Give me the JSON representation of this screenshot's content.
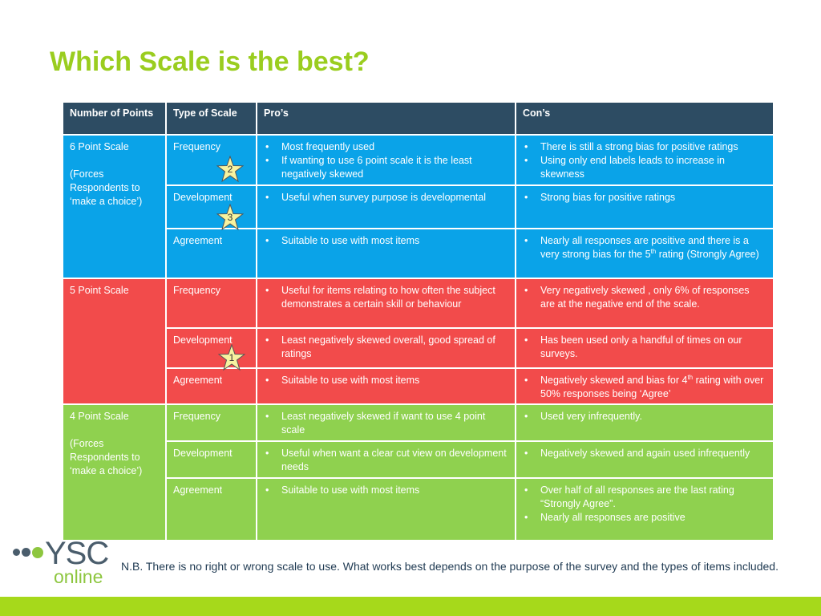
{
  "title": "Which Scale is the best?",
  "headers": [
    "Number of Points",
    "Type of Scale",
    "Pro’s",
    "Con’s"
  ],
  "groups": [
    {
      "scale": "6 Point Scale",
      "note": "(Forces Respondents to ‘make a choice’)",
      "rows": [
        {
          "type": "Frequency",
          "pros": [
            "Most frequently used",
            "If wanting to use 6 point scale it is the least negatively skewed"
          ],
          "cons": [
            "There is still a strong bias for positive ratings",
            "Using only end labels leads to increase in skewness"
          ]
        },
        {
          "type": "Development",
          "pros": [
            "Useful when survey purpose is developmental"
          ],
          "cons": [
            "Strong bias for positive ratings"
          ]
        },
        {
          "type": "Agreement",
          "pros": [
            "Suitable to use with most items"
          ],
          "cons_a": "Nearly all responses are positive  and there is a very strong bias for the 5",
          "cons_sup": "th",
          "cons_b": " rating (Strongly Agree)"
        }
      ]
    },
    {
      "scale": "5 Point Scale",
      "note": "",
      "rows": [
        {
          "type": "Frequency",
          "pros": [
            "Useful for items relating to how often the subject demonstrates a certain skill or behaviour"
          ],
          "cons": [
            "Very negatively skewed , only 6% of responses are at the negative end of the scale."
          ]
        },
        {
          "type": "Development",
          "pros": [
            "Least negatively skewed overall, good spread of ratings"
          ],
          "cons": [
            "Has been used only a handful of times on our surveys."
          ]
        },
        {
          "type": "Agreement",
          "pros": [
            "Suitable to use with most items"
          ],
          "cons_a": "Negatively skewed and bias for 4",
          "cons_sup": "th",
          "cons_b": " rating with over 50% responses being ‘Agree’"
        }
      ]
    },
    {
      "scale": "4 Point Scale",
      "note": "(Forces Respondents to ‘make a choice’)",
      "rows": [
        {
          "type": "Frequency",
          "pros": [
            "Least negatively skewed if want to use 4 point scale"
          ],
          "cons": [
            "Used very infrequently."
          ]
        },
        {
          "type": "Development",
          "pros": [
            "Useful when want a clear cut view on development needs"
          ],
          "cons": [
            "Negatively skewed and again used infrequently"
          ]
        },
        {
          "type": "Agreement",
          "pros": [
            "Suitable to use with most items"
          ],
          "cons": [
            "Over half of all responses are the last rating “Strongly Agree”.",
            "Nearly all responses are positive"
          ]
        }
      ]
    }
  ],
  "stars": [
    "2",
    "3",
    "1"
  ],
  "logo": {
    "main": "YSC",
    "sub": "online"
  },
  "footnote": "N.B. There is no right or wrong scale to use. What works best depends on the purpose of the survey and the types of items included.",
  "colors": {
    "title": "#9acd1f",
    "header": "#2d4c63",
    "six": "#0aa3e8",
    "five": "#f24b4b",
    "four": "#8fd14f",
    "bar": "#a6d91b"
  }
}
